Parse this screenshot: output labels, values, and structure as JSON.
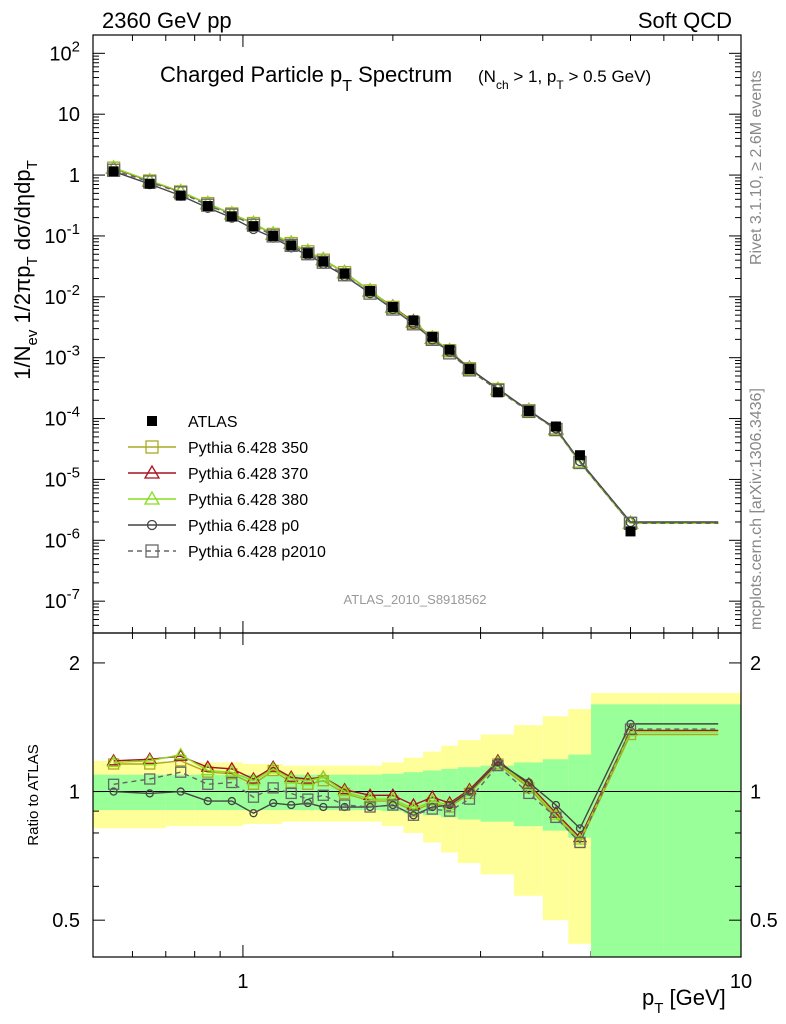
{
  "header": {
    "left": "2360 GeV pp",
    "right": "Soft QCD"
  },
  "side_text": {
    "rivet": "Rivet 3.1.10, ≥ 2.6M events",
    "url": "mcplots.cern.ch [arXiv:1306.3436]"
  },
  "chart_data": [
    {
      "type": "line",
      "panel": "main",
      "title_main": "Charged Particle p",
      "title_sub": "T",
      "title_rest": " Spectrum",
      "title_cut": "(N",
      "title_cut_sub1": "ch",
      "title_cut_mid": " > 1, p",
      "title_cut_sub2": "T",
      "title_cut_end": " > 0.5 GeV)",
      "ylabel": "1/N_ev 1/2πp_T dσ/dηdp_T",
      "xlabel": "p_T [GeV]",
      "xscale": "log",
      "yscale": "log",
      "xlim": [
        0.5,
        10
      ],
      "ylim": [
        3e-08,
        200
      ],
      "ytick_labels": [
        "10^2",
        "10",
        "1",
        "10^-1",
        "10^-2",
        "10^-3",
        "10^-4",
        "10^-5",
        "10^-6",
        "10^-7"
      ],
      "x": [
        0.55,
        0.65,
        0.75,
        0.85,
        0.95,
        1.05,
        1.15,
        1.25,
        1.35,
        1.45,
        1.6,
        1.8,
        2.0,
        2.2,
        2.4,
        2.6,
        2.85,
        3.25,
        3.75,
        4.25,
        4.75,
        6.0,
        9.0
      ],
      "data": {
        "name": "ATLAS",
        "values": [
          1.15,
          0.72,
          0.46,
          0.31,
          0.21,
          0.145,
          0.1,
          0.07,
          0.052,
          0.038,
          0.024,
          0.0125,
          0.0068,
          0.0041,
          0.0022,
          0.00135,
          0.00065,
          0.00027,
          0.000133,
          7.4e-05,
          2.5e-05,
          1.4e-06,
          1.4e-06
        ]
      },
      "series": [
        {
          "name": "Pythia 6.428 350",
          "color": "#aaaa22",
          "marker": "square",
          "values": [
            1.3,
            0.8,
            0.53,
            0.34,
            0.23,
            0.16,
            0.106,
            0.075,
            0.055,
            0.04,
            0.025,
            0.0125,
            0.0067,
            0.0038,
            0.0021,
            0.0013,
            0.00066,
            0.0003,
            0.000135,
            6.6e-05,
            1.9e-05,
            1.9e-06,
            1.9e-06
          ]
        },
        {
          "name": "Pythia 6.428 370",
          "color": "#aa1122",
          "marker": "triangle",
          "values": [
            1.3,
            0.8,
            0.53,
            0.34,
            0.23,
            0.16,
            0.107,
            0.076,
            0.055,
            0.041,
            0.025,
            0.0125,
            0.0068,
            0.0039,
            0.0021,
            0.0013,
            0.00067,
            0.0003,
            0.000136,
            6.7e-05,
            1.9e-05,
            1.9e-06,
            1.9e-06
          ]
        },
        {
          "name": "Pythia 6.428 380",
          "color": "#88dd22",
          "marker": "triangle",
          "values": [
            1.32,
            0.81,
            0.54,
            0.34,
            0.23,
            0.16,
            0.108,
            0.076,
            0.056,
            0.041,
            0.025,
            0.0125,
            0.0067,
            0.0038,
            0.0021,
            0.0013,
            0.00066,
            0.0003,
            0.000135,
            6.6e-05,
            1.9e-05,
            1.9e-06,
            1.9e-06
          ]
        },
        {
          "name": "Pythia 6.428 p0",
          "color": "#444444",
          "marker": "circle",
          "values": [
            1.15,
            0.71,
            0.46,
            0.29,
            0.2,
            0.13,
            0.094,
            0.065,
            0.049,
            0.035,
            0.022,
            0.0115,
            0.0063,
            0.0036,
            0.002,
            0.00125,
            0.00066,
            0.00031,
            0.000135,
            6.9e-05,
            2e-05,
            2e-06,
            2e-06
          ]
        },
        {
          "name": "Pythia 6.428 p2010",
          "color": "#666666",
          "marker": "square",
          "dashed": true,
          "values": [
            1.2,
            0.77,
            0.51,
            0.32,
            0.22,
            0.15,
            0.1,
            0.07,
            0.051,
            0.037,
            0.023,
            0.0115,
            0.0063,
            0.0036,
            0.002,
            0.0012,
            0.00063,
            0.00029,
            0.000131,
            6.6e-05,
            1.9e-05,
            1.9e-06,
            1.9e-06
          ]
        }
      ],
      "annotation": "ATLAS_2010_S8918562"
    },
    {
      "type": "line",
      "panel": "ratio",
      "ylabel": "Ratio to ATLAS",
      "xscale": "log",
      "yscale": "log",
      "xlim": [
        0.5,
        10
      ],
      "ylim": [
        0.41,
        2.35
      ],
      "ytick_labels": [
        "0.5",
        "1",
        "2"
      ],
      "xtick_labels": [
        "1",
        "10"
      ],
      "bins": [
        0.5,
        0.6,
        0.7,
        0.8,
        0.9,
        1.0,
        1.1,
        1.2,
        1.3,
        1.4,
        1.5,
        1.7,
        1.9,
        2.1,
        2.3,
        2.5,
        2.7,
        3.0,
        3.5,
        4.0,
        4.5,
        5.0,
        7.0,
        10.0
      ],
      "band_green": [
        0.095,
        0.095,
        0.095,
        0.095,
        0.095,
        0.095,
        0.095,
        0.095,
        0.095,
        0.095,
        0.095,
        0.095,
        0.1,
        0.11,
        0.12,
        0.13,
        0.14,
        0.15,
        0.17,
        0.19,
        0.22,
        0.6,
        0.6
      ],
      "band_yellow": [
        0.18,
        0.18,
        0.17,
        0.17,
        0.17,
        0.16,
        0.16,
        0.15,
        0.15,
        0.15,
        0.15,
        0.15,
        0.17,
        0.2,
        0.24,
        0.28,
        0.32,
        0.36,
        0.43,
        0.5,
        0.56,
        0.7,
        0.7
      ],
      "x": [
        0.55,
        0.65,
        0.75,
        0.85,
        0.95,
        1.05,
        1.15,
        1.25,
        1.35,
        1.45,
        1.6,
        1.8,
        2.0,
        2.2,
        2.4,
        2.6,
        2.85,
        3.25,
        3.75,
        4.25,
        4.75,
        6.0,
        9.0
      ],
      "series": [
        {
          "name": "Pythia 6.428 350",
          "values": [
            1.16,
            1.16,
            1.18,
            1.11,
            1.1,
            1.04,
            1.12,
            1.05,
            1.04,
            1.06,
            0.99,
            0.95,
            0.95,
            0.9,
            0.94,
            0.92,
            0.99,
            1.16,
            1.02,
            0.87,
            0.76,
            1.36,
            1.36
          ]
        },
        {
          "name": "Pythia 6.428 370",
          "values": [
            1.18,
            1.19,
            1.21,
            1.14,
            1.13,
            1.07,
            1.14,
            1.08,
            1.07,
            1.08,
            1.01,
            0.98,
            0.98,
            0.93,
            0.97,
            0.94,
            1.01,
            1.18,
            1.04,
            0.89,
            0.78,
            1.39,
            1.39
          ]
        },
        {
          "name": "Pythia 6.428 380",
          "values": [
            1.17,
            1.18,
            1.22,
            1.12,
            1.11,
            1.06,
            1.13,
            1.07,
            1.06,
            1.08,
            1.0,
            0.96,
            0.96,
            0.91,
            0.95,
            0.93,
            1.0,
            1.17,
            1.03,
            0.88,
            0.77,
            1.38,
            1.38
          ]
        },
        {
          "name": "Pythia 6.428 p0",
          "values": [
            1.0,
            0.99,
            1.0,
            0.95,
            0.95,
            0.89,
            0.94,
            0.93,
            0.94,
            0.92,
            0.92,
            0.92,
            0.93,
            0.88,
            0.92,
            0.93,
            1.0,
            1.17,
            1.05,
            0.93,
            0.82,
            1.44,
            1.44
          ]
        },
        {
          "name": "Pythia 6.428 p2010",
          "values": [
            1.04,
            1.07,
            1.11,
            1.04,
            1.05,
            0.97,
            1.02,
            0.99,
            0.96,
            0.98,
            0.93,
            0.92,
            0.93,
            0.88,
            0.91,
            0.9,
            0.96,
            1.15,
            0.99,
            0.87,
            0.76,
            1.4,
            1.4
          ]
        }
      ]
    }
  ]
}
